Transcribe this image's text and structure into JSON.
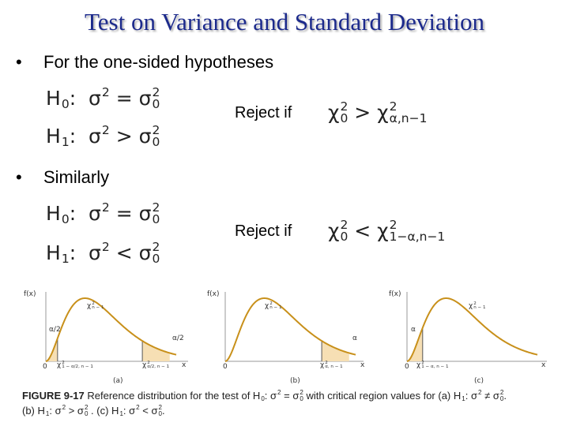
{
  "title": "Test on Variance and Standard Deviation",
  "bullets": [
    {
      "text": "For the one-sided hypotheses",
      "h0": [
        {
          "t": "H",
          "sub": "0"
        },
        {
          "t": ":  "
        },
        {
          "t": "σ",
          "sup": "2"
        },
        {
          "t": " = "
        },
        {
          "t": "σ",
          "sup": "2",
          "sub": "0"
        }
      ],
      "h1": [
        {
          "t": "H",
          "sub": "1"
        },
        {
          "t": ":  "
        },
        {
          "t": "σ",
          "sup": "2"
        },
        {
          "t": " > "
        },
        {
          "t": "σ",
          "sup": "2",
          "sub": "0"
        }
      ],
      "reject": "Reject if",
      "rule": [
        {
          "t": "χ",
          "sup": "2",
          "sub": "0"
        },
        {
          "t": " > "
        },
        {
          "t": "χ",
          "sup": "2",
          "sub": "α,n−1"
        }
      ]
    },
    {
      "text": "Similarly",
      "h0": [
        {
          "t": "H",
          "sub": "0"
        },
        {
          "t": ":  "
        },
        {
          "t": "σ",
          "sup": "2"
        },
        {
          "t": " = "
        },
        {
          "t": "σ",
          "sup": "2",
          "sub": "0"
        }
      ],
      "h1": [
        {
          "t": "H",
          "sub": "1"
        },
        {
          "t": ":  "
        },
        {
          "t": "σ",
          "sup": "2"
        },
        {
          "t": " < "
        },
        {
          "t": "σ",
          "sup": "2",
          "sub": "0"
        }
      ],
      "reject": "Reject if",
      "rule": [
        {
          "t": "χ",
          "sup": "2",
          "sub": "0"
        },
        {
          "t": " < "
        },
        {
          "t": "χ",
          "sup": "2",
          "sub": "1−α,n−1"
        }
      ]
    }
  ],
  "figure": {
    "panels": [
      {
        "ylabel": "f(x)",
        "curve_label": [
          {
            "t": "χ",
            "sup": "2",
            "sub": "n − 1"
          }
        ],
        "alpha_left": "α/2",
        "alpha_right": "α/2",
        "origin": "0",
        "crit_left": [
          {
            "t": "χ",
            "sup": "2",
            "sub": "1 − α/2, n − 1"
          }
        ],
        "crit_right": [
          {
            "t": "χ",
            "sup": "2",
            "sub": "α/2, n − 1"
          }
        ],
        "xlabel": "x",
        "tag": "(a)"
      },
      {
        "ylabel": "f(x)",
        "curve_label": [
          {
            "t": "χ",
            "sup": "2",
            "sub": "n − 1"
          }
        ],
        "alpha_right": "α",
        "origin": "0",
        "crit_right": [
          {
            "t": "χ",
            "sup": "2",
            "sub": "α, n − 1"
          }
        ],
        "xlabel": "x",
        "tag": "(b)"
      },
      {
        "ylabel": "f(x)",
        "curve_label": [
          {
            "t": "χ",
            "sup": "2",
            "sub": "n − 1"
          }
        ],
        "alpha_left": "α",
        "origin": "0",
        "crit_left": [
          {
            "t": "χ",
            "sup": "2",
            "sub": "1 − α, n − 1"
          }
        ],
        "xlabel": "x",
        "tag": "(c)"
      }
    ],
    "caption": {
      "label": "FIGURE 9-17",
      "line1": [
        {
          "t": " Reference distribution for the test of "
        },
        {
          "t": "H",
          "sub": "0"
        },
        {
          "t": ": σ",
          "sup": "2"
        },
        {
          "t": " = σ",
          "sup": "2",
          "sub": "0"
        },
        {
          "t": " with critical region values for (a) "
        },
        {
          "t": "H",
          "sub": "1"
        },
        {
          "t": ": σ",
          "sup": "2"
        },
        {
          "t": " ≠ σ",
          "sup": "2",
          "sub": "0"
        },
        {
          "t": "."
        }
      ],
      "line2": [
        {
          "t": "(b) "
        },
        {
          "t": "H",
          "sub": "1"
        },
        {
          "t": ": σ",
          "sup": "2"
        },
        {
          "t": " > σ",
          "sup": "2",
          "sub": "0"
        },
        {
          "t": " . (c) "
        },
        {
          "t": "H",
          "sub": "1"
        },
        {
          "t": ": σ",
          "sup": "2"
        },
        {
          "t": " < σ",
          "sup": "2",
          "sub": "0"
        },
        {
          "t": "."
        }
      ]
    }
  }
}
